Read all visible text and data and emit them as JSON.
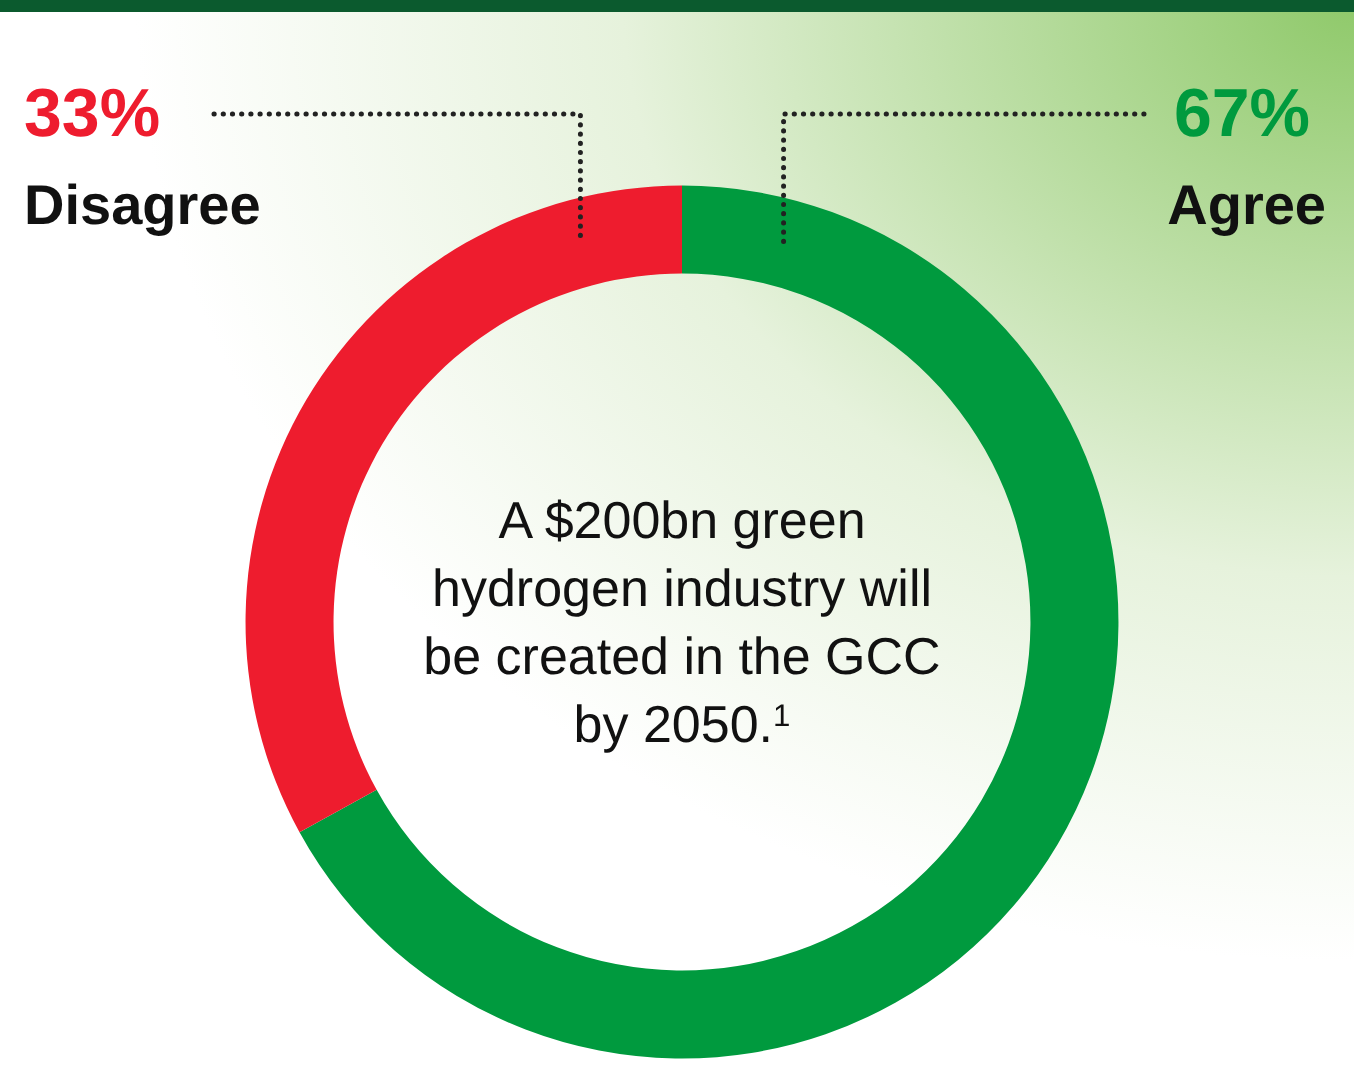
{
  "chart_data": {
    "type": "donut",
    "title": "A $200bn green hydrogen industry will be created in the GCC by 2050.$^{1}$",
    "categories": [
      "Agree",
      "Disagree"
    ],
    "values": [
      67,
      33
    ],
    "colors": [
      "#009a3e",
      "#ee1c2e"
    ],
    "value_labels": [
      "67%",
      "33%"
    ]
  }
}
